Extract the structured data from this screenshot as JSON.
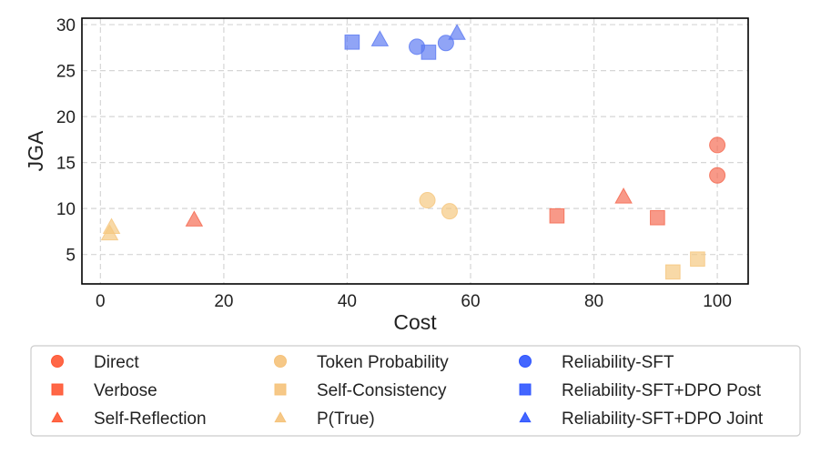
{
  "chart_data": {
    "type": "scatter",
    "title": "",
    "xlabel": "Cost",
    "ylabel": "JGA",
    "xlim": [
      -3,
      105
    ],
    "ylim": [
      1.8,
      30.7
    ],
    "xticks": [
      0,
      20,
      40,
      60,
      80,
      100
    ],
    "yticks": [
      5,
      10,
      15,
      20,
      25,
      30
    ],
    "grid": true,
    "legend_position": "bottom",
    "colors": {
      "red": "#f4694f",
      "red_legend": "#ff5733",
      "yellow": "#f5c77e",
      "yellow_legend": "#f5c27a",
      "blue": "#5b79f2",
      "blue_legend": "#2f55ff"
    },
    "series": [
      {
        "name": "Direct",
        "marker": "circle",
        "color": "red",
        "points": [
          {
            "x": 100,
            "y": 16.9
          },
          {
            "x": 100,
            "y": 13.6
          }
        ]
      },
      {
        "name": "Verbose",
        "marker": "square",
        "color": "red",
        "points": [
          {
            "x": 74,
            "y": 9.2
          },
          {
            "x": 90.3,
            "y": 9.0
          }
        ]
      },
      {
        "name": "Self-Reflection",
        "marker": "triangle",
        "color": "red",
        "points": [
          {
            "x": 15.2,
            "y": 8.8
          },
          {
            "x": 84.8,
            "y": 11.3
          }
        ]
      },
      {
        "name": "Token Probability",
        "marker": "circle",
        "color": "yellow",
        "points": [
          {
            "x": 53,
            "y": 10.9
          },
          {
            "x": 56.6,
            "y": 9.7
          }
        ]
      },
      {
        "name": "Self-Consistency",
        "marker": "square",
        "color": "yellow",
        "points": [
          {
            "x": 92.8,
            "y": 3.1
          },
          {
            "x": 96.8,
            "y": 4.5
          }
        ]
      },
      {
        "name": "P(True)",
        "marker": "triangle",
        "color": "yellow",
        "points": [
          {
            "x": 1.8,
            "y": 8.0
          },
          {
            "x": 1.5,
            "y": 7.3
          }
        ]
      },
      {
        "name": "Reliability-SFT",
        "marker": "circle",
        "color": "blue",
        "points": [
          {
            "x": 51.3,
            "y": 27.6
          },
          {
            "x": 56,
            "y": 28.0
          }
        ]
      },
      {
        "name": "Reliability-SFT+DPO Post",
        "marker": "square",
        "color": "blue",
        "points": [
          {
            "x": 40.8,
            "y": 28.1
          },
          {
            "x": 53.2,
            "y": 27.0
          }
        ]
      },
      {
        "name": "Reliability-SFT+DPO Joint",
        "marker": "triangle",
        "color": "blue",
        "points": [
          {
            "x": 45.3,
            "y": 28.4
          },
          {
            "x": 57.8,
            "y": 29.1
          }
        ]
      }
    ]
  }
}
